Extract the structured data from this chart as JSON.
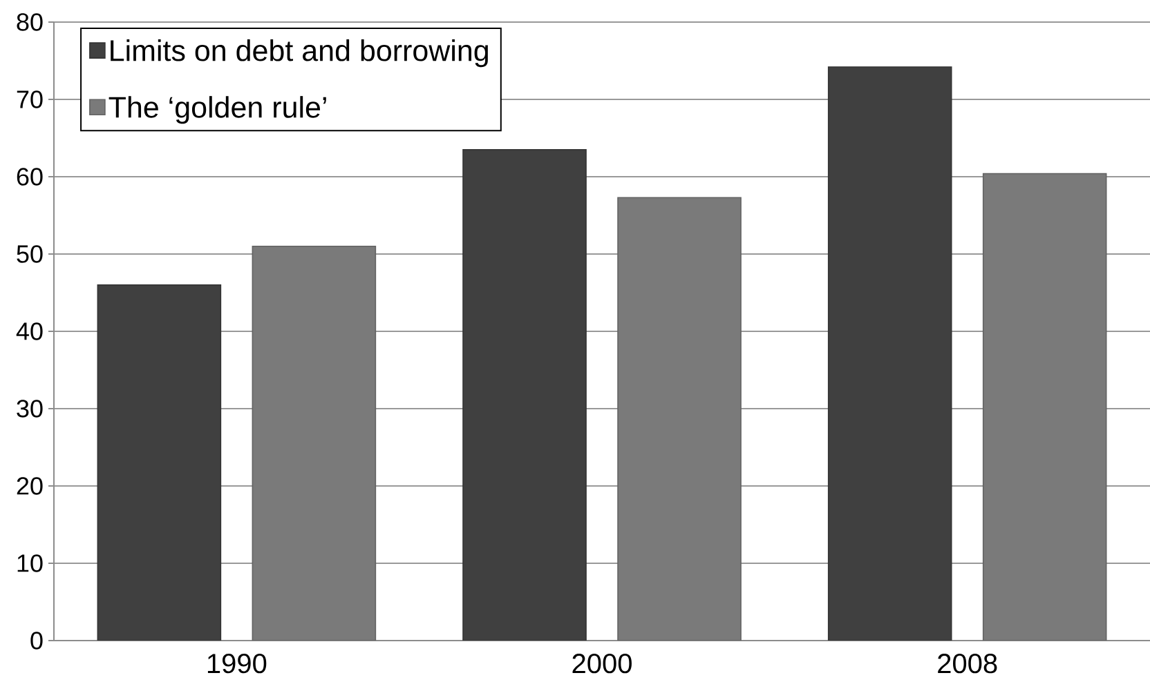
{
  "chart_data": {
    "type": "bar",
    "categories": [
      "1990",
      "2000",
      "2008"
    ],
    "series": [
      {
        "name": "Limits on debt and borrowing",
        "color": "#404040",
        "values": [
          46,
          63.5,
          74.2
        ]
      },
      {
        "name": "The ‘golden rule’",
        "color": "#7a7a7a",
        "values": [
          51,
          57.3,
          60.4
        ]
      }
    ],
    "ylim": [
      0,
      80
    ],
    "yticks": [
      0,
      10,
      20,
      30,
      40,
      50,
      60,
      70,
      80
    ],
    "grid": "y",
    "legend": "top left"
  }
}
